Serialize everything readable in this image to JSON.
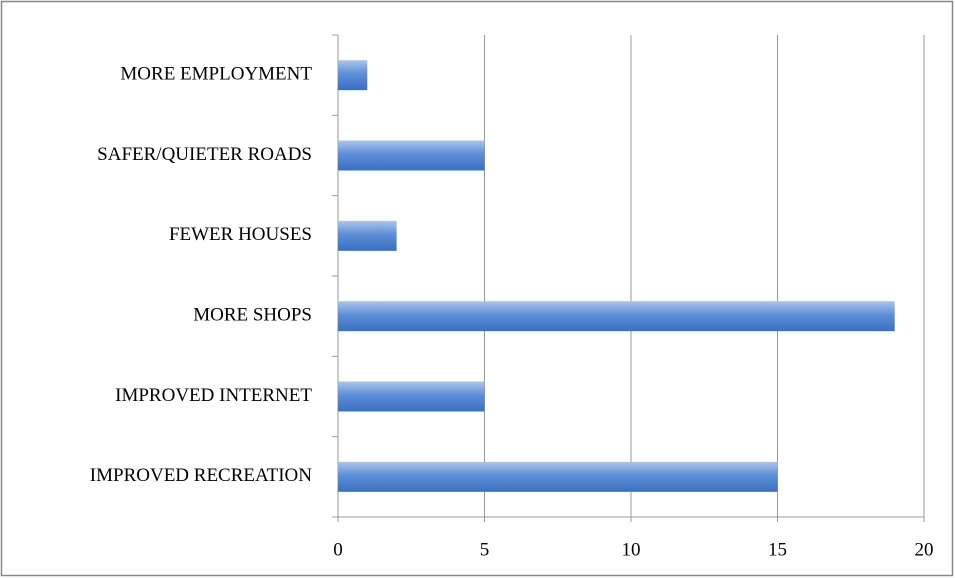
{
  "chart_data": {
    "type": "bar",
    "orientation": "horizontal",
    "categories": [
      "MORE EMPLOYMENT",
      "SAFER/QUIETER ROADS",
      "FEWER HOUSES",
      "MORE SHOPS",
      "IMPROVED INTERNET",
      "IMPROVED RECREATION"
    ],
    "values": [
      1,
      5,
      2,
      19,
      5,
      15
    ],
    "color": "#4a7ecb",
    "xlim": [
      0,
      20
    ],
    "xticks": [
      0,
      5,
      10,
      15,
      20
    ],
    "grid": true
  }
}
